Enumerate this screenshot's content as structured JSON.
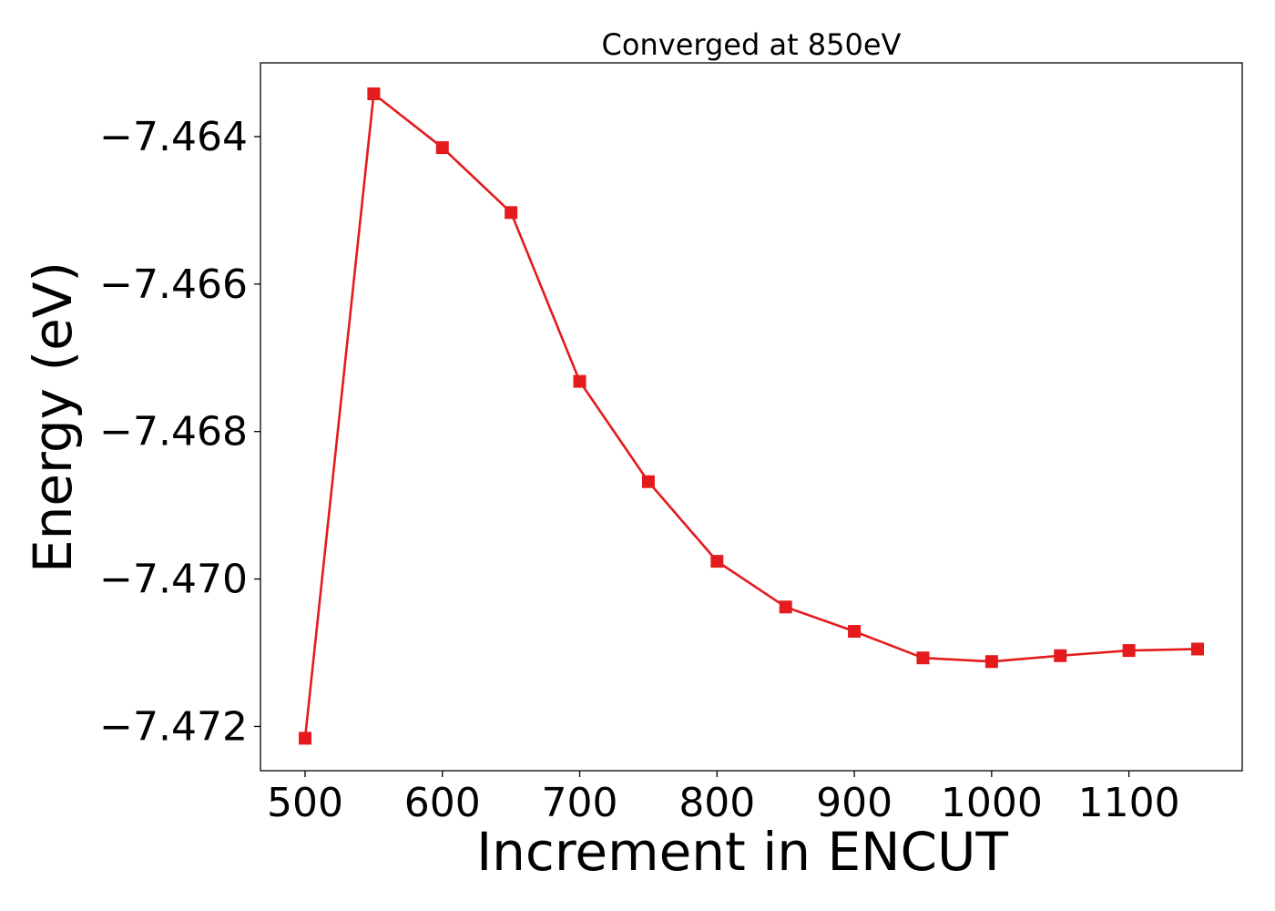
{
  "chart_data": {
    "type": "line",
    "title": "Converged at 850eV",
    "xlabel": "Increment in ENCUT",
    "ylabel": "Energy (eV)",
    "x": [
      500,
      550,
      600,
      650,
      700,
      750,
      800,
      850,
      900,
      950,
      1000,
      1050,
      1100,
      1150
    ],
    "series": [
      {
        "values": [
          -7.47216,
          -7.46342,
          -7.46415,
          -7.46503,
          -7.46732,
          -7.46868,
          -7.46976,
          -7.47038,
          -7.47071,
          -7.47107,
          -7.47112,
          -7.47104,
          -7.47097,
          -7.47095
        ],
        "color": "#e41a1c",
        "marker": "square"
      }
    ],
    "xlim": [
      467.5,
      1182.5
    ],
    "ylim": [
      -7.4726,
      -7.463
    ],
    "xticks": [
      500,
      600,
      700,
      800,
      900,
      1000,
      1100
    ],
    "yticks": [
      -7.464,
      -7.466,
      -7.468,
      -7.47,
      -7.472
    ],
    "xtick_labels": [
      "500",
      "600",
      "700",
      "800",
      "900",
      "1000",
      "1100"
    ],
    "ytick_labels": [
      "−7.464",
      "−7.466",
      "−7.468",
      "−7.470",
      "−7.472"
    ],
    "grid": false,
    "legend": "none"
  }
}
